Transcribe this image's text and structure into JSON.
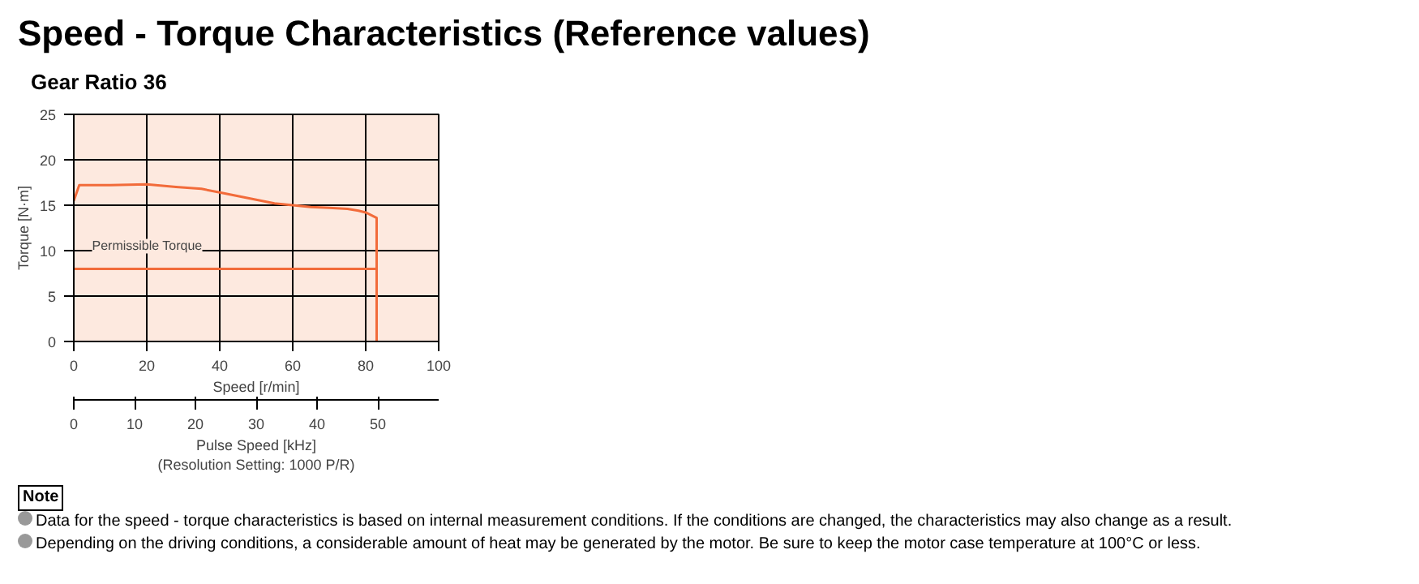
{
  "chart_data": {
    "type": "line",
    "title": "Speed - Torque Characteristics (Reference values)",
    "subtitle": "Gear Ratio 36",
    "xlabel": "Speed [r/min]",
    "ylabel": "Torque [N·m]",
    "x2label": "Pulse Speed [kHz]\n(Resolution Setting: 1000 P/R)",
    "xlim": [
      0,
      100
    ],
    "xticks": [
      0,
      20,
      40,
      60,
      80,
      100
    ],
    "ylim": [
      0,
      25
    ],
    "yticks": [
      0,
      5,
      10,
      15,
      20,
      25
    ],
    "x2lim": [
      0,
      60
    ],
    "x2ticks": [
      0,
      10,
      20,
      30,
      40,
      50
    ],
    "grid": true,
    "series": [
      {
        "color": "#f26b3a",
        "x": [
          0,
          1.5,
          10,
          20,
          28,
          35,
          40,
          45,
          50,
          55,
          60,
          65,
          70,
          75,
          78,
          80,
          82,
          83,
          83
        ],
        "values": [
          15.5,
          17.2,
          17.2,
          17.3,
          17.0,
          16.8,
          16.4,
          16.0,
          15.6,
          15.2,
          15.0,
          14.8,
          14.7,
          14.6,
          14.4,
          14.2,
          13.8,
          13.6,
          0
        ]
      },
      {
        "name": "Permissible Torque",
        "color": "#f26b3a",
        "x": [
          0,
          83
        ],
        "values": [
          8,
          8
        ]
      }
    ],
    "annotations": [
      "Note",
      "Data for the speed - torque characteristics is based on internal measurement conditions. If the conditions are changed, the characteristics may also change as a result.",
      "Depending on the driving conditions, a considerable amount of heat may be generated by the motor. Be sure to keep the motor case temperature at 100°C or less."
    ]
  }
}
